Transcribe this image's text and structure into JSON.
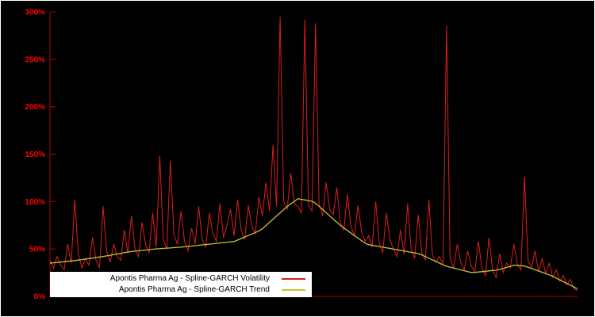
{
  "figure": {
    "background": "#000000",
    "border_color": "#ffffff"
  },
  "axes": {
    "axis_color": "#b40000",
    "tick_label_color": "#ff0000",
    "y_ticks": [
      "0%",
      "50%",
      "100%",
      "150%",
      "200%",
      "250%",
      "300%"
    ],
    "y_tick_values": [
      0,
      50,
      100,
      150,
      200,
      250,
      300
    ],
    "x_ticks": []
  },
  "legend": {
    "background": "#ffffff",
    "text_color": "#000000",
    "items": [
      {
        "label": "Apontis Pharma Ag - Spline-GARCH Volatility",
        "color": "#dc1e1e"
      },
      {
        "label": "Apontis Pharma Ag - Spline-GARCH Trend",
        "color": "#c6c62e"
      }
    ]
  },
  "chart_data": {
    "type": "line",
    "title": "",
    "xlabel": "",
    "ylabel": "",
    "y_unit": "%",
    "ylim": [
      0,
      300
    ],
    "grid": false,
    "legend_position": "bottom-left",
    "x_count": 150,
    "series": [
      {
        "name": "Apontis Pharma Ag - Spline-GARCH Volatility",
        "color": "#dc1e1e",
        "values": [
          38,
          30,
          42,
          33,
          28,
          55,
          35,
          102,
          45,
          30,
          40,
          33,
          62,
          38,
          30,
          95,
          48,
          36,
          55,
          42,
          38,
          70,
          45,
          85,
          50,
          42,
          78,
          55,
          46,
          88,
          52,
          148,
          60,
          50,
          143,
          65,
          55,
          90,
          58,
          48,
          72,
          55,
          95,
          60,
          52,
          88,
          66,
          58,
          98,
          62,
          75,
          92,
          64,
          102,
          70,
          60,
          96,
          74,
          66,
          105,
          85,
          120,
          90,
          160,
          95,
          295,
          100,
          92,
          130,
          98,
          95,
          88,
          292,
          96,
          90,
          288,
          98,
          85,
          120,
          92,
          86,
          115,
          78,
          70,
          108,
          74,
          64,
          96,
          68,
          58,
          64,
          52,
          100,
          56,
          46,
          88,
          60,
          50,
          42,
          70,
          44,
          98,
          50,
          40,
          86,
          46,
          38,
          102,
          44,
          36,
          42,
          34,
          285,
          40,
          30,
          55,
          36,
          28,
          48,
          32,
          26,
          58,
          30,
          22,
          62,
          28,
          20,
          45,
          25,
          35,
          30,
          55,
          34,
          28,
          126,
          38,
          30,
          48,
          26,
          40,
          24,
          35,
          20,
          28,
          16,
          22,
          12,
          18,
          8,
          6
        ]
      },
      {
        "name": "Apontis Pharma Ag - Spline-GARCH Trend",
        "color": "#c6c62e",
        "values": [
          35.0,
          35.4,
          35.8,
          36.2,
          36.6,
          37.0,
          37.4,
          37.8,
          38.3,
          38.8,
          39.4,
          39.9,
          40.4,
          41.0,
          41.5,
          42.0,
          42.7,
          43.4,
          44.1,
          44.7,
          45.4,
          46.1,
          46.8,
          47.3,
          47.7,
          48.1,
          48.5,
          48.9,
          49.3,
          49.7,
          50.1,
          50.3,
          50.6,
          50.9,
          51.1,
          51.4,
          51.7,
          51.9,
          52.3,
          52.7,
          53.1,
          53.5,
          53.9,
          54.3,
          54.7,
          55.1,
          55.5,
          55.9,
          56.3,
          56.8,
          57.2,
          57.6,
          57.9,
          59.4,
          61.0,
          62.6,
          64.2,
          65.8,
          67.4,
          69.0,
          71.3,
          74.7,
          78.1,
          81.4,
          84.8,
          88.1,
          91.5,
          94.8,
          97.6,
          100.2,
          103.0,
          102.3,
          101.7,
          101.0,
          100.3,
          98.3,
          95.0,
          91.6,
          88.3,
          84.9,
          81.5,
          78.2,
          74.9,
          72.2,
          69.5,
          66.8,
          64.1,
          61.4,
          58.8,
          56.1,
          54.6,
          53.9,
          53.2,
          52.6,
          51.9,
          51.2,
          50.6,
          49.9,
          49.2,
          48.6,
          47.9,
          47.2,
          46.5,
          45.9,
          45.2,
          43.8,
          42.0,
          40.3,
          38.5,
          36.8,
          35.1,
          33.3,
          31.8,
          30.8,
          29.9,
          28.9,
          28.0,
          27.1,
          26.1,
          25.2,
          25.3,
          25.7,
          26.1,
          26.5,
          26.9,
          27.3,
          27.7,
          28.4,
          29.5,
          30.6,
          31.7,
          32.9,
          32.7,
          32.4,
          32.0,
          30.8,
          29.4,
          28.1,
          26.8,
          25.4,
          24.1,
          22.7,
          21.2,
          19.3,
          17.4,
          15.5,
          13.7,
          11.8,
          9.9,
          8.0
        ]
      }
    ]
  }
}
